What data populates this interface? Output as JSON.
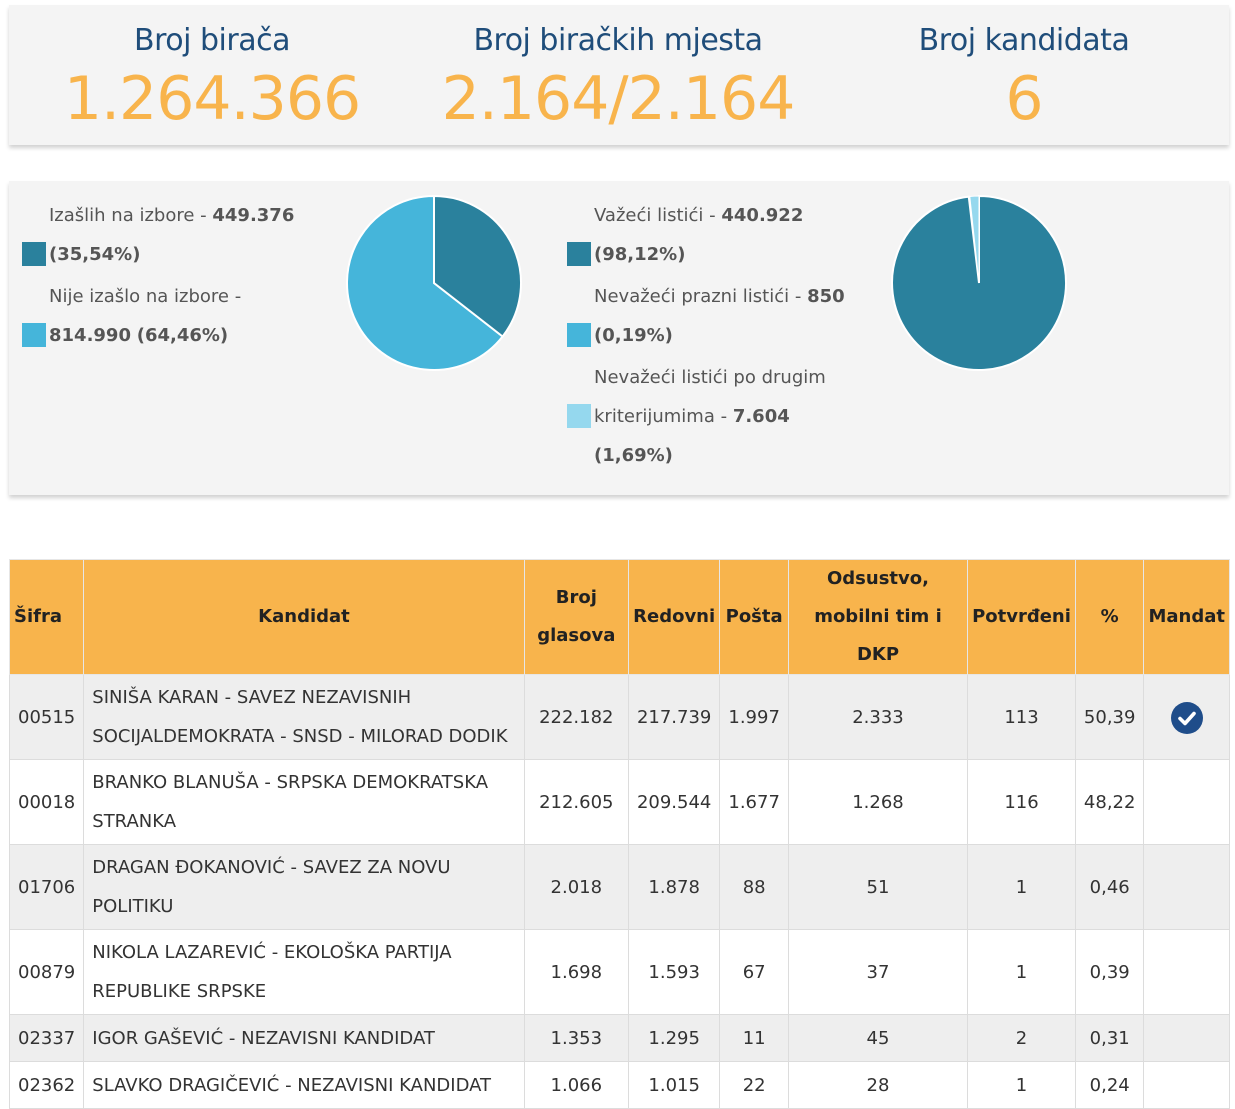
{
  "stats": {
    "voters_label": "Broj birača",
    "voters_value": "1.264.366",
    "stations_label": "Broj biračkih mjesta",
    "stations_value": "2.164/2.164",
    "candidates_label": "Broj kandidata",
    "candidates_value": "6"
  },
  "turnout": {
    "turned_out_label": "Izašlih na izbore - ",
    "turned_out_value": "449.376",
    "turned_out_pct": "(35,54%)",
    "not_turned_out_label": "Nije izašlo na izbore - ",
    "not_turned_out_value": "814.990",
    "not_turned_out_pct": "(64,46%)",
    "colors": {
      "turned_out": "#2a819d",
      "not_turned_out": "#45b5da"
    },
    "fraction_turned_out": 0.3554
  },
  "ballots": {
    "valid_label": "Važeći listići - ",
    "valid_value": "440.922",
    "valid_pct": "(98,12%)",
    "blank_label": "Nevažeći prazni listići - ",
    "blank_value": "850",
    "blank_pct": "(0,19%)",
    "other_label_1": "Nevažeći listići po drugim",
    "other_label_2": "kriterijumima - ",
    "other_value": "7.604",
    "other_pct": "(1,69%)",
    "colors": {
      "valid": "#2a819d",
      "blank": "#45b5da",
      "other": "#95d8ee"
    },
    "fractions": [
      0.9812,
      0.0019,
      0.0169
    ]
  },
  "table": {
    "headers": {
      "code": "Šifra",
      "candidate": "Kandidat",
      "votes_1": "Broj",
      "votes_2": "glasova",
      "regular": "Redovni",
      "mail": "Pošta",
      "absent_1": "Odsustvo,",
      "absent_2": "mobilni tim i DKP",
      "confirmed": "Potvrđeni",
      "percent": "%",
      "mandate": "Mandat"
    },
    "rows": [
      {
        "code": "00515",
        "name_1": "SINIŠA KARAN - SAVEZ NEZAVISNIH",
        "name_2": "SOCIJALDEMOKRATA - SNSD - MILORAD DODIK",
        "votes": "222.182",
        "regular": "217.739",
        "mail": "1.997",
        "absent": "2.333",
        "confirmed": "113",
        "percent": "50,39",
        "mandate": true
      },
      {
        "code": "00018",
        "name_1": "BRANKO BLANUŠA - SRPSKA DEMOKRATSKA",
        "name_2": "STRANKA",
        "votes": "212.605",
        "regular": "209.544",
        "mail": "1.677",
        "absent": "1.268",
        "confirmed": "116",
        "percent": "48,22",
        "mandate": false
      },
      {
        "code": "01706",
        "name_1": "DRAGAN ĐOKANOVIĆ - SAVEZ ZA NOVU",
        "name_2": "POLITIKU",
        "votes": "2.018",
        "regular": "1.878",
        "mail": "88",
        "absent": "51",
        "confirmed": "1",
        "percent": "0,46",
        "mandate": false
      },
      {
        "code": "00879",
        "name_1": "NIKOLA LAZAREVIĆ - EKOLOŠKA PARTIJA",
        "name_2": "REPUBLIKE SRPSKE",
        "votes": "1.698",
        "regular": "1.593",
        "mail": "67",
        "absent": "37",
        "confirmed": "1",
        "percent": "0,39",
        "mandate": false
      },
      {
        "code": "02337",
        "name_1": "IGOR GAŠEVIĆ - NEZAVISNI KANDIDAT",
        "name_2": "",
        "votes": "1.353",
        "regular": "1.295",
        "mail": "11",
        "absent": "45",
        "confirmed": "2",
        "percent": "0,31",
        "mandate": false
      },
      {
        "code": "02362",
        "name_1": "SLAVKO DRAGIČEVIĆ - NEZAVISNI KANDIDAT",
        "name_2": "",
        "votes": "1.066",
        "regular": "1.015",
        "mail": "22",
        "absent": "28",
        "confirmed": "1",
        "percent": "0,24",
        "mandate": false
      }
    ]
  }
}
